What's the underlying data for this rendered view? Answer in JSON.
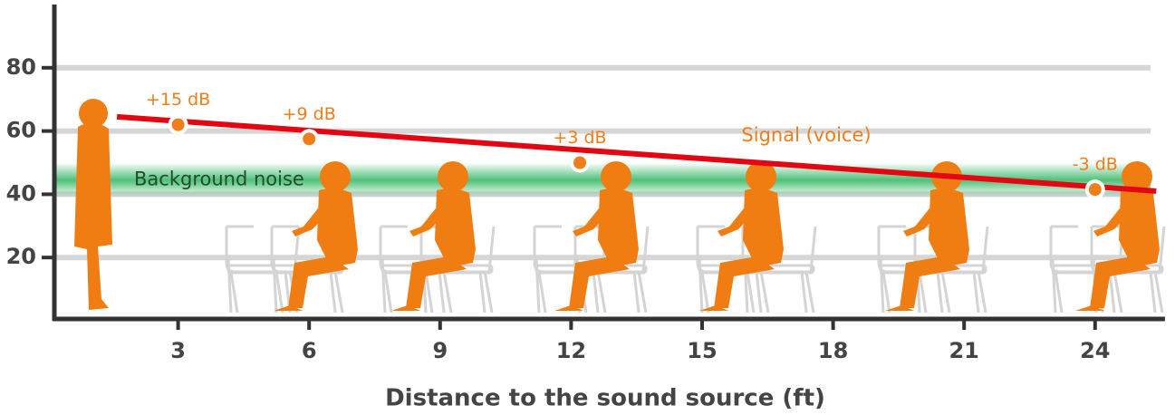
{
  "chart_data": {
    "type": "line",
    "xlabel": "Distance to the sound source (ft)",
    "xlim": [
      0,
      25.6
    ],
    "xticks": [
      3,
      6,
      9,
      12,
      15,
      18,
      21,
      24
    ],
    "ylim": [
      0,
      100
    ],
    "yticks": [
      20,
      40,
      60,
      80
    ],
    "grid": true,
    "band": {
      "name": "Background noise",
      "range": [
        39,
        50
      ],
      "color": "#3cb96a"
    },
    "series": [
      {
        "name": "Signal (voice)",
        "color": "#e30613",
        "x": [
          1.6,
          25.4
        ],
        "values": [
          64.5,
          41
        ]
      }
    ],
    "points": {
      "color": "#ef7d1a",
      "x": [
        3,
        6,
        12.2,
        24
      ],
      "values": [
        62,
        57.5,
        50,
        41.5
      ],
      "labels": [
        "+15 dB",
        "+9 dB",
        "+3 dB",
        "-3 dB"
      ]
    }
  }
}
